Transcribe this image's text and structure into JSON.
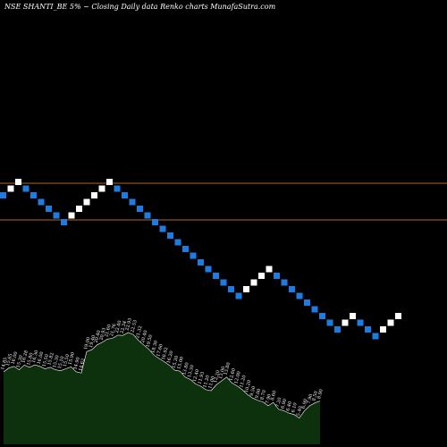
{
  "header": {
    "title": "NSE SHANTI_BE 5% ~  Closing Daily data  Renko  charts MunafaSutra.com"
  },
  "colors": {
    "background": "#000000",
    "up_brick": "#ffffff",
    "down_brick": "#1e7be0",
    "reference_line": "#b0661a",
    "area_fill": "#0d300d",
    "area_stroke": "#ffffff"
  },
  "chart_data": {
    "type": "renko",
    "brick_size_label": "5%",
    "direction_sequence": [
      "down",
      "up",
      "up",
      "down",
      "down",
      "down",
      "down",
      "down",
      "down",
      "up",
      "up",
      "up",
      "up",
      "up",
      "up",
      "down",
      "down",
      "down",
      "down",
      "down",
      "down",
      "down",
      "down",
      "down",
      "down",
      "down",
      "down",
      "down",
      "down",
      "down",
      "down",
      "down",
      "up",
      "up",
      "up",
      "up",
      "down",
      "down",
      "down",
      "down",
      "down",
      "down",
      "down",
      "down",
      "down",
      "up",
      "up",
      "down",
      "down",
      "down",
      "up",
      "up",
      "up"
    ],
    "reference_lines": [
      "upper",
      "lower"
    ],
    "volume_area": {
      "values": [
        14.85,
        15.65,
        16.0,
        15.3,
        16.28,
        15.8,
        16.3,
        16.0,
        15.5,
        15.82,
        15.3,
        15.1,
        15.5,
        15.9,
        14.9,
        14.62,
        19.0,
        19.4,
        20.4,
        20.93,
        21.6,
        21.76,
        22.4,
        22.34,
        22.93,
        22.53,
        21.32,
        20.4,
        19.5,
        18.3,
        17.6,
        16.92,
        16.2,
        15.2,
        15.0,
        13.8,
        13.3,
        12.4,
        11.93,
        11.2,
        11.0,
        12.2,
        13.0,
        13.8,
        12.6,
        12.0,
        11.2,
        10.2,
        9.5,
        9.0,
        8.7,
        7.9,
        8.6,
        7.2,
        6.9,
        6.4,
        6.1,
        5.4,
        6.9,
        7.9,
        8.5,
        8.9
      ],
      "labels": [
        "14.85",
        "15.65",
        "16.00",
        "15.30",
        "16.28",
        "15.80",
        "16.30",
        "16.00",
        "15.50",
        "15.82",
        "15.30",
        "15.10",
        "15.50",
        "15.90",
        "14.90",
        "14.62",
        "19.00",
        "19.40",
        "20.40",
        "20.93",
        "21.60",
        "21.76",
        "22.40",
        "22.34",
        "22.93",
        "22.53",
        "21.32",
        "20.40",
        "19.50",
        "18.30",
        "17.60",
        "16.92",
        "16.20",
        "15.20",
        "15.00",
        "13.80",
        "13.30",
        "12.40",
        "11.93",
        "11.20",
        "11.00",
        "12.20",
        "13.00",
        "13.80",
        "12.60",
        "12.00",
        "11.20",
        "10.20",
        "9.50",
        "9.00",
        "8.70",
        "7.90",
        "8.60",
        "7.20",
        "6.90",
        "6.40",
        "6.10",
        "5.40",
        "6.90",
        "7.90",
        "8.50",
        "8.90"
      ]
    }
  }
}
